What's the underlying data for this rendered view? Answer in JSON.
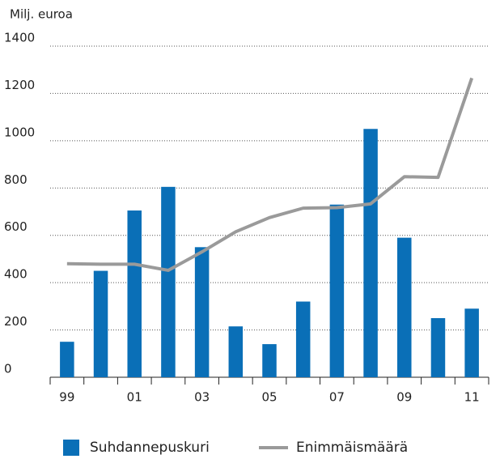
{
  "chart_data": {
    "type": "bar",
    "y_label": "Milj. euroa",
    "categories": [
      "99",
      null,
      "01",
      null,
      "03",
      null,
      "05",
      null,
      "07",
      null,
      "09",
      null,
      "11"
    ],
    "series": [
      {
        "name": "Suhdannepuskuri",
        "type": "bar",
        "color": "#0a6fb7",
        "values": [
          150,
          450,
          705,
          805,
          550,
          215,
          140,
          320,
          730,
          1050,
          590,
          250,
          290
        ]
      },
      {
        "name": "Enimmäismäärä",
        "type": "line",
        "color": "#9a9a9a",
        "values": [
          480,
          478,
          478,
          452,
          530,
          615,
          675,
          715,
          717,
          733,
          848,
          845,
          1265
        ]
      }
    ],
    "ylim": [
      0,
      1400
    ],
    "yticks": [
      0,
      200,
      400,
      600,
      800,
      1000,
      1200,
      1400
    ],
    "grid": true
  }
}
